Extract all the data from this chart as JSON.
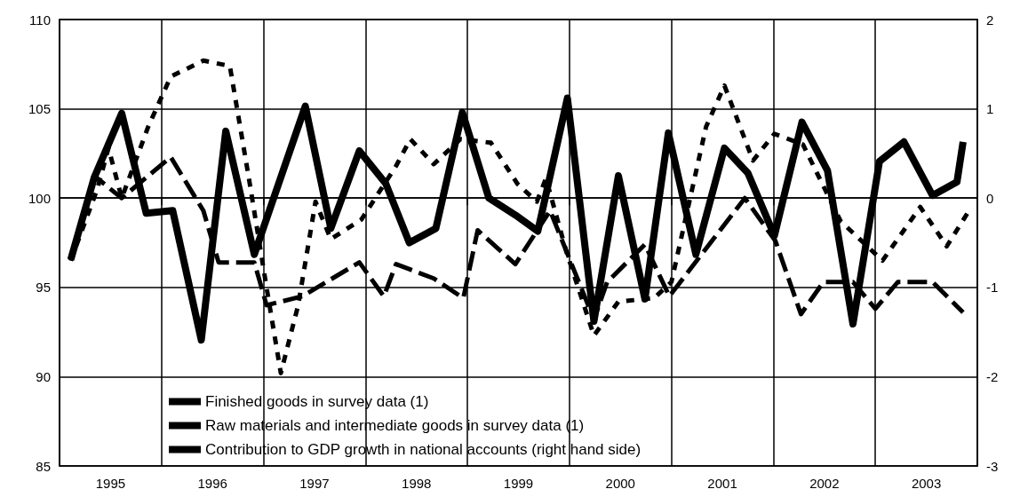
{
  "chart_data": {
    "type": "line",
    "xlim": [
      1995,
      2004
    ],
    "xticks": [
      {
        "value": 1995,
        "label": null
      },
      {
        "value": 1995.5,
        "label": "1995"
      },
      {
        "value": 1996,
        "label": null
      },
      {
        "value": 1996.5,
        "label": "1996"
      },
      {
        "value": 1997,
        "label": null
      },
      {
        "value": 1997.5,
        "label": "1997"
      },
      {
        "value": 1998,
        "label": null
      },
      {
        "value": 1998.5,
        "label": "1998"
      },
      {
        "value": 1999,
        "label": null
      },
      {
        "value": 1999.5,
        "label": "1999"
      },
      {
        "value": 2000,
        "label": null
      },
      {
        "value": 2000.5,
        "label": "2000"
      },
      {
        "value": 2001,
        "label": null
      },
      {
        "value": 2001.5,
        "label": "2001"
      },
      {
        "value": 2002,
        "label": null
      },
      {
        "value": 2002.5,
        "label": "2002"
      },
      {
        "value": 2003,
        "label": null
      },
      {
        "value": 2003.5,
        "label": "2003"
      },
      {
        "value": 2004,
        "label": null
      }
    ],
    "ylim": [
      85,
      110
    ],
    "yticks": [
      85,
      90,
      95,
      100,
      105,
      110
    ],
    "y2lim": [
      -3,
      2
    ],
    "y2ticks": [
      -3,
      -2,
      -1,
      0,
      1,
      2
    ],
    "grid": true,
    "legend": "bottom left",
    "marker": "none",
    "series": [
      {
        "name": "Finished goods in survey data (1)",
        "color": "#000000",
        "line_style": "dotted",
        "x": [
          1995.11,
          1995.37,
          1995.48,
          1995.61,
          1995.87,
          1996.09,
          1996.41,
          1996.67,
          1996.86,
          1997.03,
          1997.17,
          1997.34,
          1997.51,
          1997.66,
          1997.96,
          1998.3,
          1998.44,
          1998.67,
          1998.93,
          1999.23,
          1999.49,
          1999.68,
          1999.77,
          1999.97,
          2000.24,
          2000.48,
          2000.83,
          2001.0,
          2001.34,
          2001.52,
          2001.8,
          2002.01,
          2002.29,
          2002.66,
          2003.07,
          2003.44,
          2003.7,
          2003.93
        ],
        "values": [
          96.5,
          100.5,
          102.8,
          100.0,
          104.0,
          106.8,
          107.7,
          107.4,
          101.0,
          95.0,
          90.2,
          94.0,
          99.8,
          97.7,
          98.8,
          101.8,
          103.3,
          101.9,
          103.3,
          103.1,
          100.8,
          99.8,
          101.1,
          97.0,
          92.3,
          94.2,
          94.4,
          95.3,
          104.0,
          106.3,
          102.1,
          103.6,
          103.0,
          98.7,
          96.5,
          99.5,
          97.3,
          99.4
        ]
      },
      {
        "name": "Raw materials and intermediate goods in survey data (1)",
        "color": "#000000",
        "line_style": "dashed",
        "x": [
          1995.11,
          1995.35,
          1995.61,
          1996.09,
          1996.41,
          1996.56,
          1996.91,
          1997.03,
          1997.38,
          1997.94,
          1998.18,
          1998.3,
          1998.67,
          1998.96,
          1999.1,
          1999.47,
          1999.81,
          2000.24,
          2000.37,
          2000.74,
          2000.98,
          2001.72,
          2002.02,
          2002.27,
          2002.49,
          2002.78,
          2003.0,
          2003.22,
          2003.56,
          2003.86
        ],
        "values": [
          96.5,
          101.2,
          100.0,
          102.3,
          99.3,
          96.4,
          96.4,
          94.0,
          94.5,
          96.4,
          94.5,
          96.3,
          95.5,
          94.4,
          98.2,
          96.3,
          99.3,
          93.2,
          95.3,
          97.4,
          94.5,
          100.0,
          97.6,
          93.5,
          95.3,
          95.3,
          93.8,
          95.3,
          95.3,
          93.6
        ]
      },
      {
        "name": "Contribution to GDP growth in national accounts (right hand side)",
        "color": "#000000",
        "line_style": "solid",
        "axis": "y2",
        "x": [
          1995.11,
          1995.34,
          1995.61,
          1995.85,
          1996.11,
          1996.39,
          1996.63,
          1996.91,
          1997.41,
          1997.66,
          1997.94,
          1998.2,
          1998.43,
          1998.69,
          1998.95,
          1999.21,
          1999.47,
          1999.69,
          1999.98,
          2000.24,
          2000.48,
          2000.74,
          2000.97,
          2001.24,
          2001.52,
          2001.75,
          2002.01,
          2002.28,
          2002.53,
          2002.78,
          2003.04,
          2003.28,
          2003.56,
          2003.8,
          2003.86
        ],
        "values": [
          -0.69,
          0.23,
          0.95,
          -0.17,
          -0.14,
          -1.59,
          0.75,
          -0.63,
          1.03,
          -0.34,
          0.53,
          0.16,
          -0.5,
          -0.34,
          0.96,
          0.0,
          -0.19,
          -0.37,
          1.12,
          -1.38,
          0.25,
          -1.13,
          0.73,
          -0.63,
          0.56,
          0.28,
          -0.42,
          0.85,
          0.31,
          -1.41,
          0.41,
          0.63,
          0.03,
          0.18,
          0.63
        ]
      }
    ]
  }
}
